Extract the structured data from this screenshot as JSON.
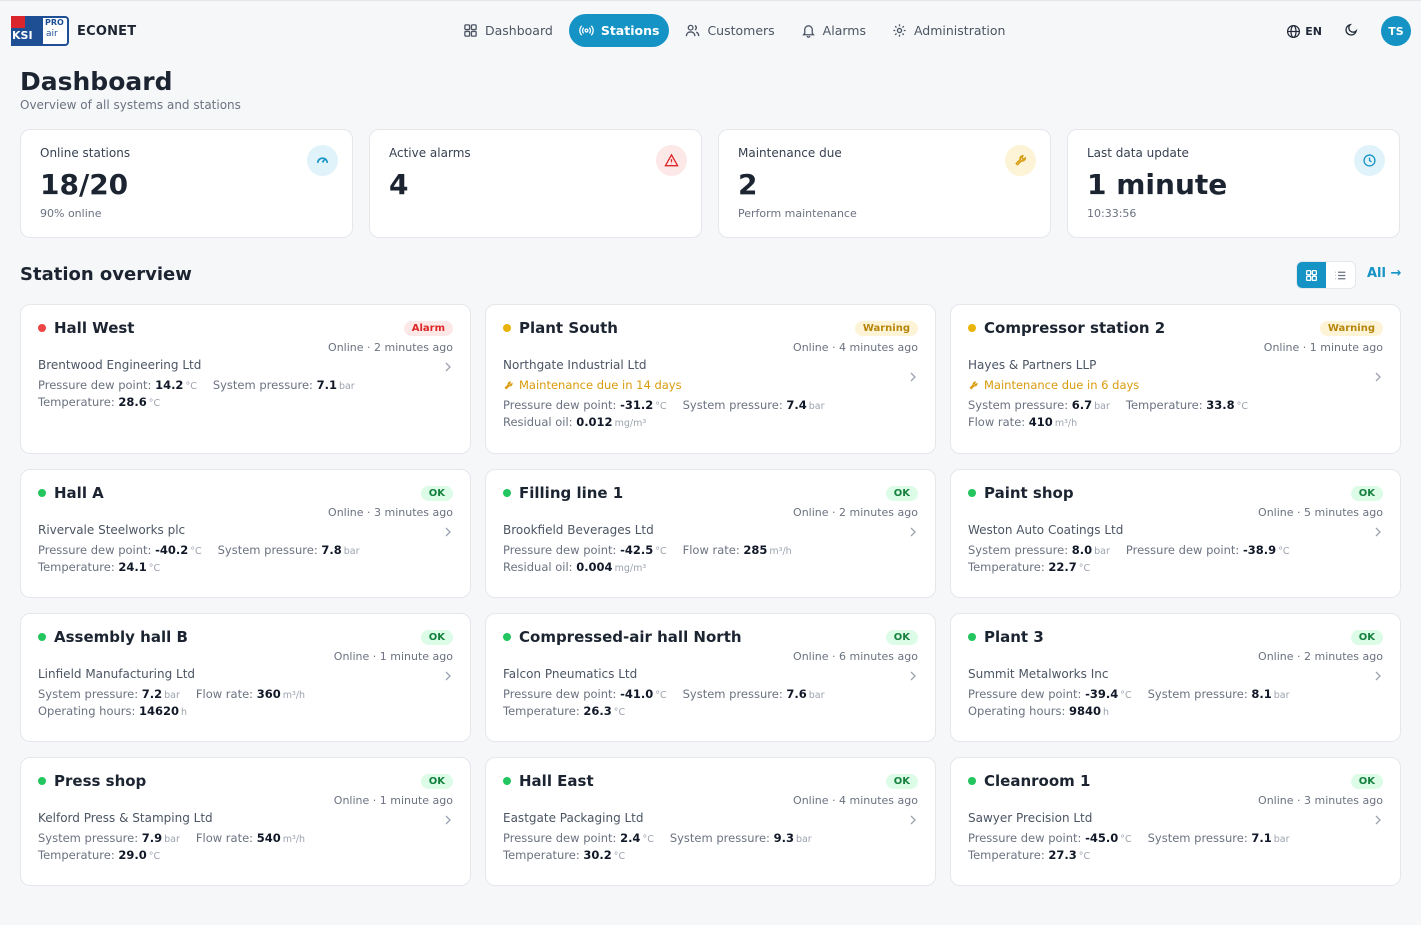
{
  "app": {
    "name": "ECONET",
    "logo": {
      "left": "KSI",
      "top": "PRO",
      "bottom": "air"
    },
    "language": "EN",
    "user_initials": "TS",
    "accent": "#1593c4"
  },
  "nav": [
    {
      "label": "Dashboard",
      "icon": "grid-icon",
      "active": false
    },
    {
      "label": "Stations",
      "icon": "broadcast-icon",
      "active": true
    },
    {
      "label": "Customers",
      "icon": "users-icon",
      "active": false
    },
    {
      "label": "Alarms",
      "icon": "bell-icon",
      "active": false
    },
    {
      "label": "Administration",
      "icon": "gear-icon",
      "active": false
    }
  ],
  "page": {
    "title": "Dashboard",
    "subtitle": "Overview of all systems and stations"
  },
  "stats": [
    {
      "label": "Online stations",
      "value": "18/20",
      "note": "90% online",
      "icon": "gauge-icon",
      "icon_color": "#1593c4",
      "icon_bg": "#e1f3fa"
    },
    {
      "label": "Active alarms",
      "value": "4",
      "note": "",
      "icon": "warning-icon",
      "icon_color": "#dc2626",
      "icon_bg": "#fde8e8"
    },
    {
      "label": "Maintenance due",
      "value": "2",
      "note": "Perform maintenance",
      "icon": "wrench-icon",
      "icon_color": "#d89b0c",
      "icon_bg": "#fdf3d6"
    },
    {
      "label": "Last data update",
      "value": "1 minute",
      "note": "10:33:56",
      "icon": "clock-icon",
      "icon_color": "#1593c4",
      "icon_bg": "#e1f3fa"
    }
  ],
  "overview": {
    "title": "Station overview",
    "all_link": "All →",
    "view": "grid"
  },
  "status_colors": {
    "alarm": "#ef4444",
    "warning": "#eab308",
    "ok": "#22c55e"
  },
  "stations": [
    {
      "name": "Hall West",
      "status": "alarm",
      "badge": "Alarm",
      "online": "Online · 2 minutes ago",
      "company": "Brentwood Engineering Ltd",
      "maintenance": "",
      "metrics": [
        {
          "label": "Pressure dew point:",
          "value": "14.2",
          "unit": "°C"
        },
        {
          "label": "System pressure:",
          "value": "7.1",
          "unit": "bar"
        },
        {
          "label": "Temperature:",
          "value": "28.6",
          "unit": "°C"
        }
      ]
    },
    {
      "name": "Plant South",
      "status": "warning",
      "badge": "Warning",
      "online": "Online · 4 minutes ago",
      "company": "Northgate Industrial Ltd",
      "maintenance": "Maintenance due in 14 days",
      "metrics": [
        {
          "label": "Pressure dew point:",
          "value": "-31.2",
          "unit": "°C"
        },
        {
          "label": "System pressure:",
          "value": "7.4",
          "unit": "bar"
        },
        {
          "label": "Residual oil:",
          "value": "0.012",
          "unit": "mg/m³"
        }
      ]
    },
    {
      "name": "Compressor station 2",
      "status": "warning",
      "badge": "Warning",
      "online": "Online · 1 minute ago",
      "company": "Hayes & Partners LLP",
      "maintenance": "Maintenance due in 6 days",
      "metrics": [
        {
          "label": "System pressure:",
          "value": "6.7",
          "unit": "bar"
        },
        {
          "label": "Temperature:",
          "value": "33.8",
          "unit": "°C"
        },
        {
          "label": "Flow rate:",
          "value": "410",
          "unit": "m³/h"
        }
      ]
    },
    {
      "name": "Hall A",
      "status": "ok",
      "badge": "OK",
      "online": "Online · 3 minutes ago",
      "company": "Rivervale Steelworks plc",
      "maintenance": "",
      "metrics": [
        {
          "label": "Pressure dew point:",
          "value": "-40.2",
          "unit": "°C"
        },
        {
          "label": "System pressure:",
          "value": "7.8",
          "unit": "bar"
        },
        {
          "label": "Temperature:",
          "value": "24.1",
          "unit": "°C"
        }
      ]
    },
    {
      "name": "Filling line 1",
      "status": "ok",
      "badge": "OK",
      "online": "Online · 2 minutes ago",
      "company": "Brookfield Beverages Ltd",
      "maintenance": "",
      "metrics": [
        {
          "label": "Pressure dew point:",
          "value": "-42.5",
          "unit": "°C"
        },
        {
          "label": "Flow rate:",
          "value": "285",
          "unit": "m³/h"
        },
        {
          "label": "Residual oil:",
          "value": "0.004",
          "unit": "mg/m³"
        }
      ]
    },
    {
      "name": "Paint shop",
      "status": "ok",
      "badge": "OK",
      "online": "Online · 5 minutes ago",
      "company": "Weston Auto Coatings Ltd",
      "maintenance": "",
      "metrics": [
        {
          "label": "System pressure:",
          "value": "8.0",
          "unit": "bar"
        },
        {
          "label": "Pressure dew point:",
          "value": "-38.9",
          "unit": "°C"
        },
        {
          "label": "Temperature:",
          "value": "22.7",
          "unit": "°C"
        }
      ]
    },
    {
      "name": "Assembly hall B",
      "status": "ok",
      "badge": "OK",
      "online": "Online · 1 minute ago",
      "company": "Linfield Manufacturing Ltd",
      "maintenance": "",
      "metrics": [
        {
          "label": "System pressure:",
          "value": "7.2",
          "unit": "bar"
        },
        {
          "label": "Flow rate:",
          "value": "360",
          "unit": "m³/h"
        },
        {
          "label": "Operating hours:",
          "value": "14620",
          "unit": "h"
        }
      ]
    },
    {
      "name": "Compressed-air hall North",
      "status": "ok",
      "badge": "OK",
      "online": "Online · 6 minutes ago",
      "company": "Falcon Pneumatics Ltd",
      "maintenance": "",
      "metrics": [
        {
          "label": "Pressure dew point:",
          "value": "-41.0",
          "unit": "°C"
        },
        {
          "label": "System pressure:",
          "value": "7.6",
          "unit": "bar"
        },
        {
          "label": "Temperature:",
          "value": "26.3",
          "unit": "°C"
        }
      ]
    },
    {
      "name": "Plant 3",
      "status": "ok",
      "badge": "OK",
      "online": "Online · 2 minutes ago",
      "company": "Summit Metalworks Inc",
      "maintenance": "",
      "metrics": [
        {
          "label": "Pressure dew point:",
          "value": "-39.4",
          "unit": "°C"
        },
        {
          "label": "System pressure:",
          "value": "8.1",
          "unit": "bar"
        },
        {
          "label": "Operating hours:",
          "value": "9840",
          "unit": "h"
        }
      ]
    },
    {
      "name": "Press shop",
      "status": "ok",
      "badge": "OK",
      "online": "Online · 1 minute ago",
      "company": "Kelford Press & Stamping Ltd",
      "maintenance": "",
      "metrics": [
        {
          "label": "System pressure:",
          "value": "7.9",
          "unit": "bar"
        },
        {
          "label": "Flow rate:",
          "value": "540",
          "unit": "m³/h"
        },
        {
          "label": "Temperature:",
          "value": "29.0",
          "unit": "°C"
        }
      ]
    },
    {
      "name": "Hall East",
      "status": "ok",
      "badge": "OK",
      "online": "Online · 4 minutes ago",
      "company": "Eastgate Packaging Ltd",
      "maintenance": "",
      "metrics": [
        {
          "label": "Pressure dew point:",
          "value": "2.4",
          "unit": "°C"
        },
        {
          "label": "System pressure:",
          "value": "9.3",
          "unit": "bar"
        },
        {
          "label": "Temperature:",
          "value": "30.2",
          "unit": "°C"
        }
      ]
    },
    {
      "name": "Cleanroom 1",
      "status": "ok",
      "badge": "OK",
      "online": "Online · 3 minutes ago",
      "company": "Sawyer Precision Ltd",
      "maintenance": "",
      "metrics": [
        {
          "label": "Pressure dew point:",
          "value": "-45.0",
          "unit": "°C"
        },
        {
          "label": "System pressure:",
          "value": "7.1",
          "unit": "bar"
        },
        {
          "label": "Temperature:",
          "value": "27.3",
          "unit": "°C"
        }
      ]
    }
  ]
}
